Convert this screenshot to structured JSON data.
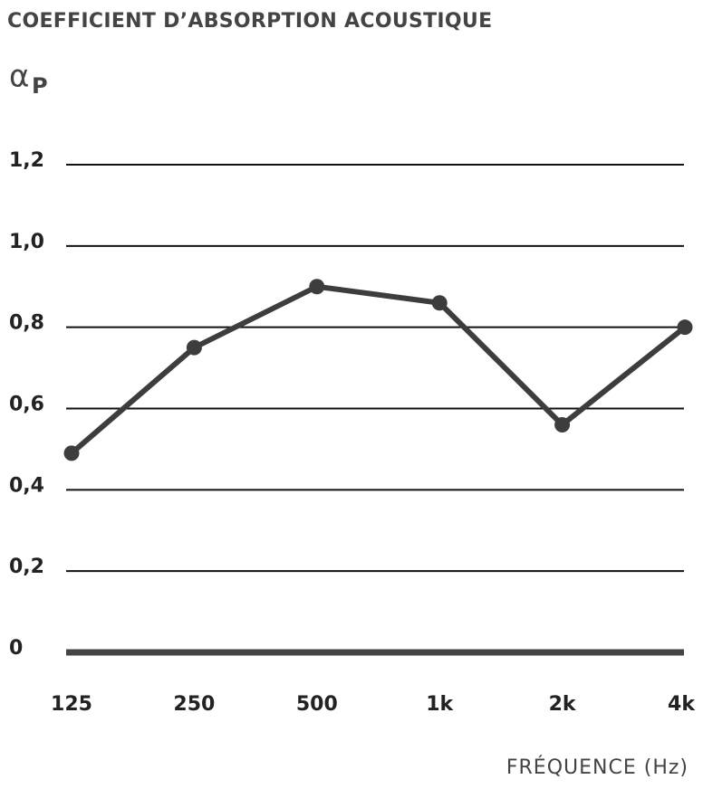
{
  "chart_data": {
    "type": "line",
    "title": "COEFFICIENT D’ABSORPTION ACOUSTIQUE",
    "y_label": "α",
    "y_label_sub": "P",
    "x_label": "FRÉQUENCE (Hz)",
    "categories": [
      "125",
      "250",
      "500",
      "1k",
      "2k",
      "4k"
    ],
    "values": [
      0.49,
      0.75,
      0.9,
      0.86,
      0.56,
      0.8
    ],
    "color": "#3d3d3d",
    "ylim": [
      0,
      1.2
    ],
    "yticks": [
      0,
      {
        "value": 0.2,
        "label": "0,2"
      },
      {
        "value": 0.4,
        "label": "0,4"
      },
      {
        "value": 0.6,
        "label": "0,6"
      },
      {
        "value": 0.8,
        "label": "0,8"
      },
      {
        "value": 1.0,
        "label": "1,0"
      },
      {
        "value": 1.2,
        "label": "1,2"
      }
    ],
    "grid": true
  }
}
